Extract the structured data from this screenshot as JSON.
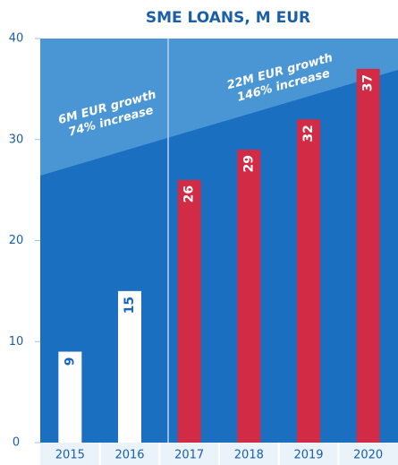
{
  "chart_data": {
    "type": "bar",
    "title": "SME LOANS, M EUR",
    "categories": [
      "2015",
      "2016",
      "2017",
      "2018",
      "2019",
      "2020"
    ],
    "values": [
      9,
      15,
      26,
      29,
      32,
      37
    ],
    "colors": [
      "#ffffff",
      "#ffffff",
      "#d22b45",
      "#d22b45",
      "#d22b45",
      "#d22b45"
    ],
    "label_colors": [
      "#1565c0",
      "#1565c0",
      "#ffffff",
      "#ffffff",
      "#ffffff",
      "#ffffff"
    ],
    "ylim": [
      0,
      40
    ],
    "yticks": [
      0,
      10,
      20,
      30,
      40
    ],
    "annotations": [
      {
        "lines": [
          "6M EUR growth",
          "74% increase"
        ]
      },
      {
        "lines": [
          "22M EUR growth",
          "146% increase"
        ]
      }
    ]
  }
}
